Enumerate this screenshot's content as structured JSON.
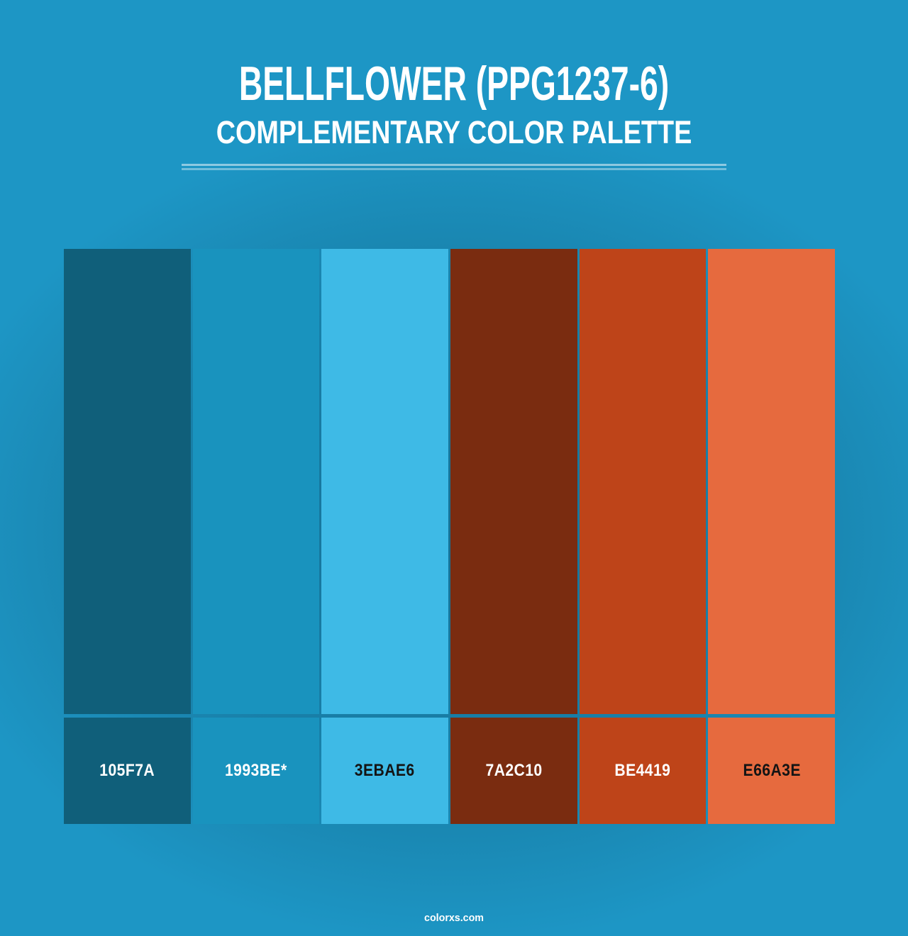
{
  "header": {
    "title": "BELLFLOWER (PPG1237-6)",
    "subtitle": "COMPLEMENTARY COLOR PALETTE"
  },
  "palette": {
    "swatches": [
      {
        "hex_label": "105F7A",
        "css": "#105F7A",
        "label_color": "#FFFFFF"
      },
      {
        "hex_label": "1993BE*",
        "css": "#1993BE",
        "label_color": "#FFFFFF"
      },
      {
        "hex_label": "3EBAE6",
        "css": "#3EBAE6",
        "label_color": "#141414"
      },
      {
        "hex_label": "7A2C10",
        "css": "#7A2C10",
        "label_color": "#FFFFFF"
      },
      {
        "hex_label": "BE4419",
        "css": "#BE4419",
        "label_color": "#FFFFFF"
      },
      {
        "hex_label": "E66A3E",
        "css": "#E66A3E",
        "label_color": "#141414"
      }
    ]
  },
  "footer": {
    "site": "colorxs.com"
  },
  "colors": {
    "page_background": "#1D96C5",
    "vignette": "#072A3B",
    "divider": "rgba(255,255,255,0.5)",
    "title_text": "#FFFFFF"
  }
}
